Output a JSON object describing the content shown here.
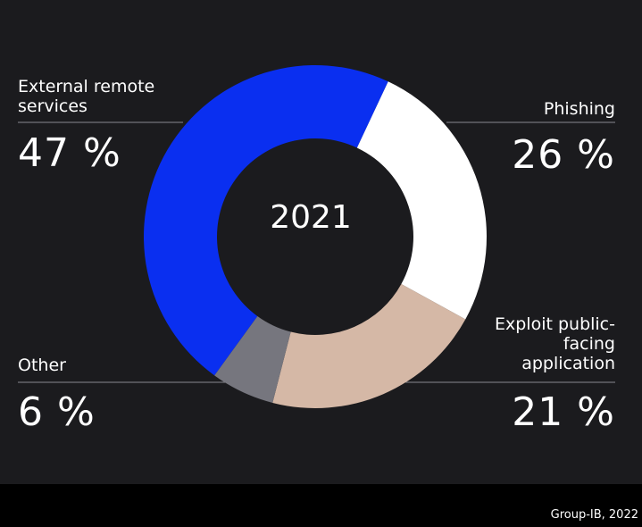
{
  "chart_data": {
    "type": "pie",
    "center_label": "2021",
    "slices": [
      {
        "label": "External remote services",
        "value": 47,
        "value_text": "47 %",
        "color": "#0a2ff0"
      },
      {
        "label": "Phishing",
        "value": 26,
        "value_text": "26 %",
        "color": "#ffffff"
      },
      {
        "label": "Exploit public-facing application",
        "value": 21,
        "value_text": "21 %",
        "color": "#d5b8a6"
      },
      {
        "label": "Other",
        "value": 6,
        "value_text": "6 %",
        "color": "#76767e"
      }
    ],
    "source": "Group-IB, 2022",
    "background_color": "#1b1b1e"
  }
}
